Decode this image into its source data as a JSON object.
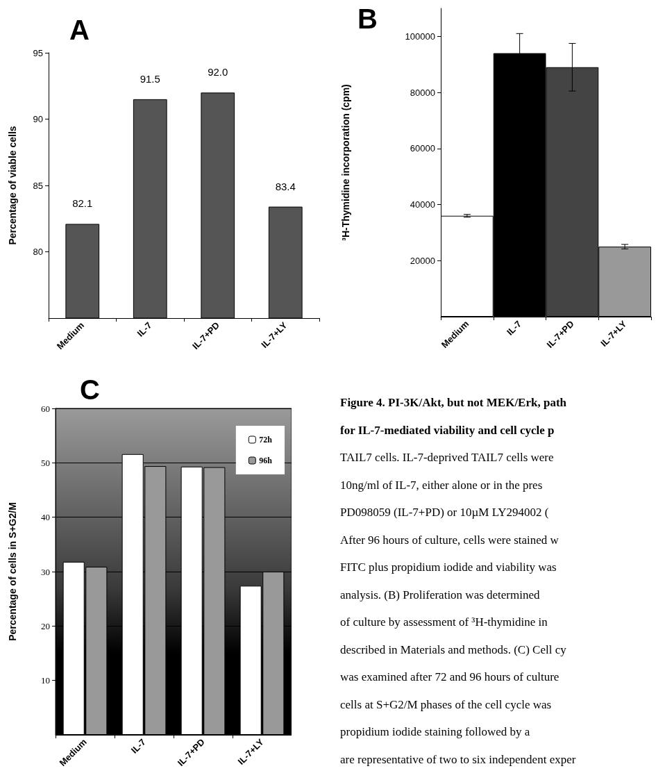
{
  "chart_data": [
    {
      "type": "bar",
      "title": "A",
      "ylabel": "Percentage of viable cells",
      "categories": [
        "Medium",
        "IL-7",
        "IL-7+PD",
        "IL-7+LY"
      ],
      "values": [
        82.1,
        91.5,
        92.0,
        83.4
      ],
      "value_labels": [
        "82.1",
        "91.5",
        "92.0",
        "83.4"
      ],
      "color": "#555555",
      "ylim": [
        75,
        95
      ],
      "yticks": [
        80,
        85,
        90,
        95
      ],
      "grid": false
    },
    {
      "type": "bar",
      "title": "B",
      "ylabel": "³H-Thymidine incorporation (cpm)",
      "categories": [
        "Medium",
        "IL-7",
        "IL-7+PD",
        "IL-7+LY"
      ],
      "values": [
        36000,
        94000,
        89000,
        25000
      ],
      "errors": [
        500,
        7000,
        8500,
        800
      ],
      "colors": [
        "#ffffff",
        "#000000",
        "#444444",
        "#999999"
      ],
      "ylim": [
        0,
        110000
      ],
      "yticks": [
        20000,
        40000,
        60000,
        80000,
        100000
      ],
      "grid": false
    },
    {
      "type": "bar",
      "title": "C",
      "ylabel": "Percentage of cells in S+G2/M",
      "categories": [
        "Medium",
        "IL-7",
        "IL-7+PD",
        "IL-7+LY"
      ],
      "series": [
        {
          "name": "72h",
          "color": "#ffffff",
          "values": [
            31.8,
            51.6,
            49.3,
            27.4
          ]
        },
        {
          "name": "96h",
          "color": "#999999",
          "values": [
            30.9,
            49.4,
            49.2,
            30.0
          ]
        }
      ],
      "ylim": [
        0,
        60
      ],
      "yticks": [
        10,
        20,
        30,
        40,
        50,
        60
      ],
      "grid": "y",
      "legend": "top right"
    },
    {
      "type": "other",
      "annotations": [
        "Figure 4. PI-3K/Akt, but not MEK/Erk, path",
        "for IL-7-mediated viability and cell cycle p",
        "TAIL7 cells. IL-7-deprived TAIL7 cells were",
        "10ng/ml of IL-7, either alone or in the pres",
        "PD098059 (IL-7+PD) or 10µM LY294002 (",
        "After 96 hours of culture, cells were stained w",
        "FITC plus propidium iodide and viability was",
        "analysis. (B) Proliferation was determined",
        "of culture by assessment of ³H-thymidine in",
        "described in Materials and methods. (C) Cell cy",
        "was examined after 72 and 96 hours of culture",
        "cells at S+G2/M phases of the cell cycle was",
        "propidium iodide staining followed by a",
        "are representative of two to six independent exper"
      ]
    }
  ]
}
